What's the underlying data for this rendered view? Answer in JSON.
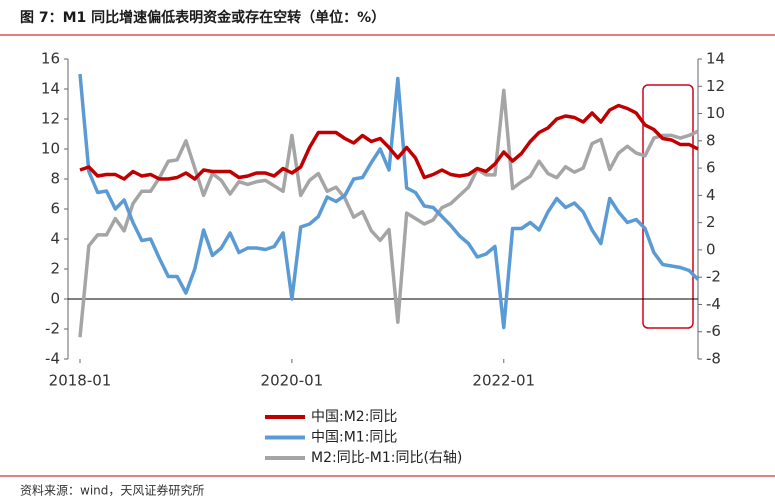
{
  "chart_data": {
    "type": "line",
    "title": "图 7：M1 同比增速偏低表明资金或存在空转（单位：%）",
    "source": "资料来源：wind，天风证券研究所",
    "x": [
      "2018-01",
      "2018-02",
      "2018-03",
      "2018-04",
      "2018-05",
      "2018-06",
      "2018-07",
      "2018-08",
      "2018-09",
      "2018-10",
      "2018-11",
      "2018-12",
      "2019-01",
      "2019-02",
      "2019-03",
      "2019-04",
      "2019-05",
      "2019-06",
      "2019-07",
      "2019-08",
      "2019-09",
      "2019-10",
      "2019-11",
      "2019-12",
      "2020-01",
      "2020-02",
      "2020-03",
      "2020-04",
      "2020-05",
      "2020-06",
      "2020-07",
      "2020-08",
      "2020-09",
      "2020-10",
      "2020-11",
      "2020-12",
      "2021-01",
      "2021-02",
      "2021-03",
      "2021-04",
      "2021-05",
      "2021-06",
      "2021-07",
      "2021-08",
      "2021-09",
      "2021-10",
      "2021-11",
      "2021-12",
      "2022-01",
      "2022-02",
      "2022-03",
      "2022-04",
      "2022-05",
      "2022-06",
      "2022-07",
      "2022-08",
      "2022-09",
      "2022-10",
      "2022-11",
      "2022-12",
      "2023-01",
      "2023-02",
      "2023-03",
      "2023-04",
      "2023-05",
      "2023-06",
      "2023-07",
      "2023-08",
      "2023-09",
      "2023-10",
      "2023-11"
    ],
    "xticks": [
      "2018-01",
      "2020-01",
      "2022-01"
    ],
    "ylim": [
      -4,
      16
    ],
    "yticks": [
      -4,
      -2,
      0,
      2,
      4,
      6,
      8,
      10,
      12,
      14,
      16
    ],
    "y2lim": [
      -8,
      14
    ],
    "y2ticks": [
      -8,
      -6,
      -4,
      -2,
      0,
      2,
      4,
      6,
      8,
      10,
      12,
      14
    ],
    "series": [
      {
        "name": "中国:M2:同比",
        "color": "#c00000",
        "values": [
          8.6,
          8.8,
          8.2,
          8.3,
          8.3,
          8.0,
          8.5,
          8.2,
          8.3,
          8.0,
          8.0,
          8.1,
          8.4,
          8.0,
          8.6,
          8.5,
          8.5,
          8.5,
          8.1,
          8.2,
          8.4,
          8.4,
          8.2,
          8.7,
          8.4,
          8.8,
          10.1,
          11.1,
          11.1,
          11.1,
          10.7,
          10.4,
          10.9,
          10.5,
          10.7,
          10.1,
          9.4,
          10.1,
          9.4,
          8.1,
          8.3,
          8.6,
          8.3,
          8.2,
          8.3,
          8.7,
          8.5,
          9.0,
          9.8,
          9.2,
          9.7,
          10.5,
          11.1,
          11.4,
          12.0,
          12.2,
          12.1,
          11.8,
          12.4,
          11.8,
          12.6,
          12.9,
          12.7,
          12.4,
          11.6,
          11.3,
          10.7,
          10.6,
          10.3,
          10.3,
          10.0
        ]
      },
      {
        "name": "中国:M1:同比",
        "color": "#5b9bd5",
        "values": [
          15.0,
          8.5,
          7.1,
          7.2,
          6.0,
          6.6,
          5.1,
          3.9,
          4.0,
          2.7,
          1.5,
          1.5,
          0.4,
          2.0,
          4.6,
          2.9,
          3.4,
          4.4,
          3.1,
          3.4,
          3.4,
          3.3,
          3.5,
          4.4,
          0.0,
          4.8,
          5.0,
          5.5,
          6.8,
          6.5,
          6.9,
          8.0,
          8.1,
          9.1,
          10.0,
          8.6,
          14.7,
          7.4,
          7.1,
          6.2,
          6.1,
          5.5,
          4.9,
          4.2,
          3.7,
          2.8,
          3.0,
          3.5,
          -1.9,
          4.7,
          4.7,
          5.1,
          4.6,
          5.8,
          6.7,
          6.1,
          6.4,
          5.8,
          4.6,
          3.7,
          6.7,
          5.8,
          5.1,
          5.3,
          4.7,
          3.1,
          2.3,
          2.2,
          2.1,
          1.9,
          1.3
        ]
      },
      {
        "name": "M2:同比-M1:同比(右轴)",
        "color": "#a5a5a5",
        "axis": "y2",
        "values": [
          -6.4,
          0.3,
          1.1,
          1.1,
          2.3,
          1.4,
          3.4,
          4.3,
          4.3,
          5.3,
          6.5,
          6.6,
          8.0,
          6.0,
          4.0,
          5.6,
          5.1,
          4.1,
          5.0,
          4.8,
          5.0,
          5.1,
          4.7,
          4.3,
          8.4,
          4.0,
          5.1,
          5.6,
          4.3,
          4.6,
          3.8,
          2.4,
          2.8,
          1.4,
          0.7,
          1.5,
          -5.3,
          2.7,
          2.3,
          1.9,
          2.2,
          3.1,
          3.4,
          4.0,
          4.6,
          5.9,
          5.5,
          5.5,
          11.7,
          4.5,
          5.0,
          5.4,
          6.5,
          5.6,
          5.3,
          6.1,
          5.7,
          6.0,
          7.8,
          8.1,
          5.9,
          7.1,
          7.6,
          7.1,
          6.9,
          8.2,
          8.4,
          8.4,
          8.2,
          8.4,
          8.7
        ]
      }
    ]
  }
}
